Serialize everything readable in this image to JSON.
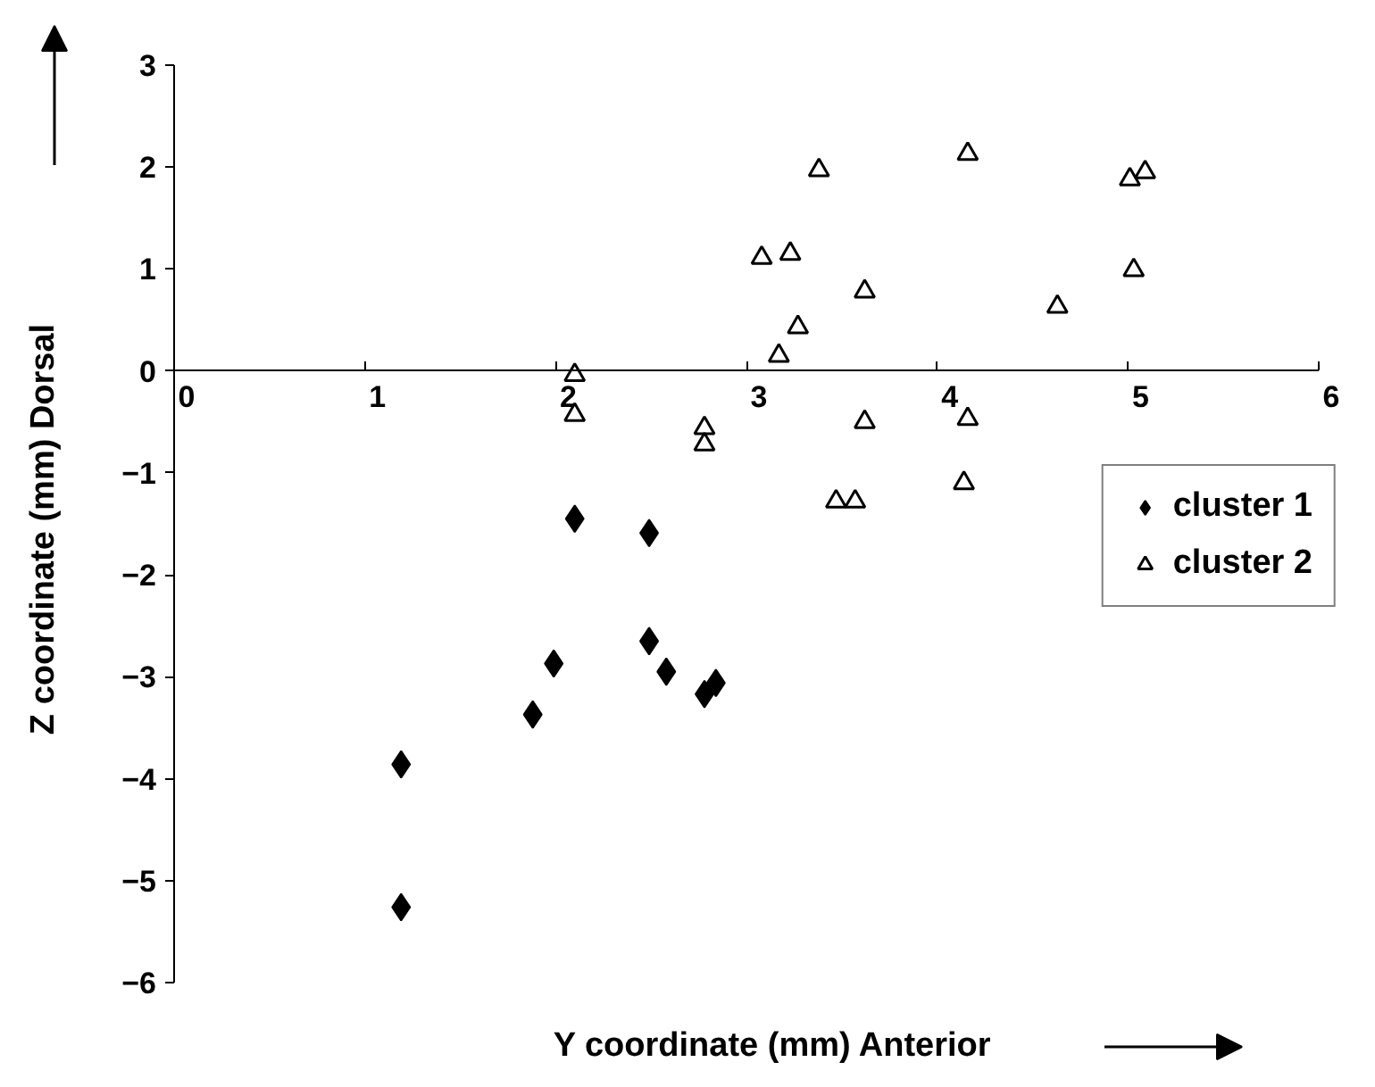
{
  "chart_data": {
    "type": "scatter",
    "xlabel": "Y coordinate (mm)  Anterior",
    "ylabel": "Z coordinate (mm) Dorsal",
    "xlim": [
      0,
      6
    ],
    "ylim": [
      -6,
      3
    ],
    "xticks": [
      0,
      1,
      2,
      3,
      4,
      5,
      6
    ],
    "yticks": [
      -6,
      -5,
      -4,
      -3,
      -2,
      -1,
      0,
      1,
      2,
      3
    ],
    "grid": false,
    "legend": "right",
    "series": [
      {
        "name": "cluster 1",
        "color": "#000000",
        "marker": "diamond",
        "x": [
          1.19,
          1.19,
          1.88,
          1.99,
          2.1,
          2.49,
          2.49,
          2.58,
          2.78,
          2.84
        ],
        "values": [
          -3.86,
          -5.26,
          -3.37,
          -2.87,
          -1.45,
          -1.59,
          -2.65,
          -2.95,
          -3.17,
          -3.06
        ]
      },
      {
        "name": "cluster 2",
        "color": "#000000",
        "marker": "triangle",
        "x": [
          2.1,
          2.1,
          2.78,
          2.78,
          3.08,
          3.23,
          3.17,
          3.27,
          3.38,
          3.62,
          3.62,
          3.47,
          3.57,
          4.16,
          4.16,
          4.14,
          4.63,
          5.01,
          5.09,
          5.03
        ],
        "values": [
          -0.04,
          -0.43,
          -0.56,
          -0.72,
          1.11,
          1.15,
          0.15,
          0.43,
          1.97,
          0.78,
          -0.5,
          -1.28,
          -1.28,
          2.13,
          -0.47,
          -1.1,
          0.63,
          1.88,
          1.95,
          0.99
        ]
      }
    ]
  }
}
